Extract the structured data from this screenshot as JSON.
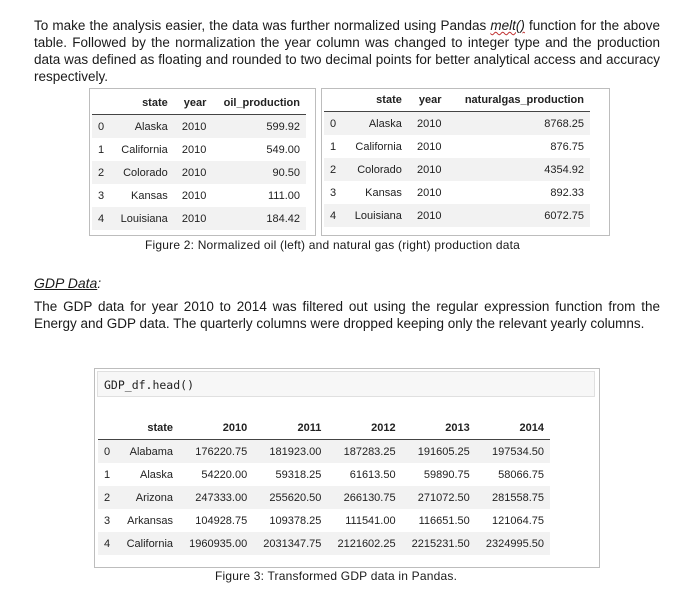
{
  "intro": {
    "before": "To make the analysis easier, the data was further normalized using Pandas ",
    "func": "melt()",
    "after": " function for the above table. Followed by the normalization the year column was changed to integer type and the production data was defined as floating and rounded to two decimal points for better analytical access and accuracy respectively."
  },
  "oil_table": {
    "headers": [
      "",
      "state",
      "year",
      "oil_production"
    ],
    "rows": [
      [
        "0",
        "Alaska",
        "2010",
        "599.92"
      ],
      [
        "1",
        "California",
        "2010",
        "549.00"
      ],
      [
        "2",
        "Colorado",
        "2010",
        "90.50"
      ],
      [
        "3",
        "Kansas",
        "2010",
        "111.00"
      ],
      [
        "4",
        "Louisiana",
        "2010",
        "184.42"
      ]
    ]
  },
  "gas_table": {
    "headers": [
      "",
      "state",
      "year",
      "naturalgas_production"
    ],
    "rows": [
      [
        "0",
        "Alaska",
        "2010",
        "8768.25"
      ],
      [
        "1",
        "California",
        "2010",
        "876.75"
      ],
      [
        "2",
        "Colorado",
        "2010",
        "4354.92"
      ],
      [
        "3",
        "Kansas",
        "2010",
        "892.33"
      ],
      [
        "4",
        "Louisiana",
        "2010",
        "6072.75"
      ]
    ]
  },
  "figure2_caption": "Figure 2: Normalized oil (left) and natural gas (right) production data",
  "gdp_heading": "GDP Data",
  "gdp_heading_suffix": ":",
  "gdp_paragraph": "The GDP data for year 2010 to 2014 was filtered out using the regular expression function from the Energy and GDP data. The quarterly columns were dropped keeping only the relevant yearly columns.",
  "code_cell": "GDP_df.head()",
  "gdp_table": {
    "headers": [
      "",
      "state",
      "2010",
      "2011",
      "2012",
      "2013",
      "2014"
    ],
    "rows": [
      [
        "0",
        "Alabama",
        "176220.75",
        "181923.00",
        "187283.25",
        "191605.25",
        "197534.50"
      ],
      [
        "1",
        "Alaska",
        "54220.00",
        "59318.25",
        "61613.50",
        "59890.75",
        "58066.75"
      ],
      [
        "2",
        "Arizona",
        "247333.00",
        "255620.50",
        "266130.75",
        "271072.50",
        "281558.75"
      ],
      [
        "3",
        "Arkansas",
        "104928.75",
        "109378.25",
        "111541.00",
        "116651.50",
        "121064.75"
      ],
      [
        "4",
        "California",
        "1960935.00",
        "2031347.75",
        "2121602.25",
        "2215231.50",
        "2324995.50"
      ]
    ]
  },
  "figure3_caption": "Figure 3: Transformed GDP data in Pandas."
}
